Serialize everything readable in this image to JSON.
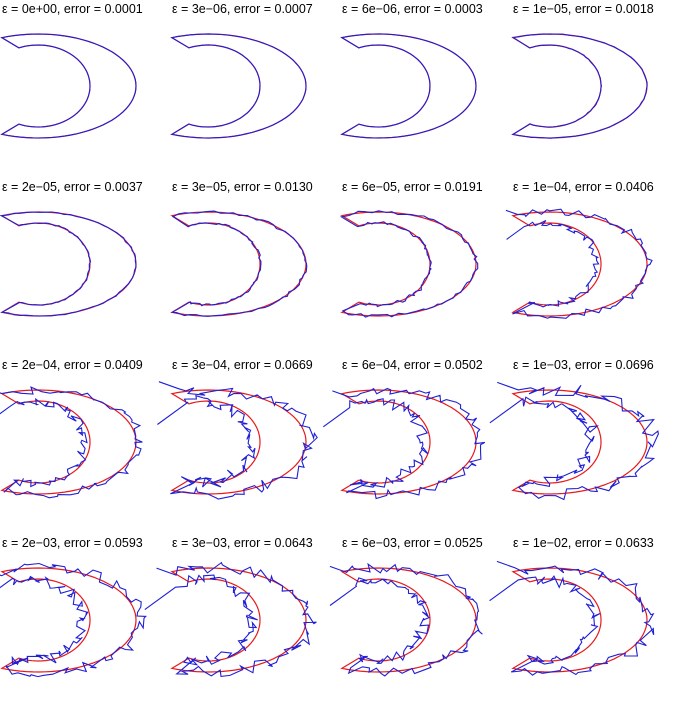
{
  "colors": {
    "reference_curve": "#e8191a",
    "reconstructed_curve": "#1f1fd6"
  },
  "panels": [
    {
      "title": "ε = 0e+00, error = 0.0001",
      "epsilon": 0,
      "error": 0.0001
    },
    {
      "title": "ε = 3e−06, error = 0.0007",
      "epsilon": 3e-06,
      "error": 0.0007
    },
    {
      "title": "ε = 6e−06, error = 0.0003",
      "epsilon": 6e-06,
      "error": 0.0003
    },
    {
      "title": "ε = 1e−05, error = 0.0018",
      "epsilon": 1e-05,
      "error": 0.0018
    },
    {
      "title": "ε = 2e−05, error = 0.0037",
      "epsilon": 2e-05,
      "error": 0.0037
    },
    {
      "title": "ε = 3e−05, error = 0.0130",
      "epsilon": 3e-05,
      "error": 0.013
    },
    {
      "title": "ε = 6e−05, error = 0.0191",
      "epsilon": 6e-05,
      "error": 0.0191
    },
    {
      "title": "ε = 1e−04, error = 0.0406",
      "epsilon": 0.0001,
      "error": 0.0406
    },
    {
      "title": "ε = 2e−04, error = 0.0409",
      "epsilon": 0.0002,
      "error": 0.0409
    },
    {
      "title": "ε = 3e−04, error = 0.0669",
      "epsilon": 0.0003,
      "error": 0.0669
    },
    {
      "title": "ε = 6e−04, error = 0.0502",
      "epsilon": 0.0006,
      "error": 0.0502
    },
    {
      "title": "ε = 1e−03, error = 0.0696",
      "epsilon": 0.001,
      "error": 0.0696
    },
    {
      "title": "ε = 2e−03, error = 0.0593",
      "epsilon": 0.002,
      "error": 0.0593
    },
    {
      "title": "ε = 3e−03, error = 0.0643",
      "epsilon": 0.003,
      "error": 0.0643
    },
    {
      "title": "ε = 6e−03, error = 0.0525",
      "epsilon": 0.006,
      "error": 0.0525
    },
    {
      "title": "ε = 1e−02, error = 0.0633",
      "epsilon": 0.01,
      "error": 0.0633
    }
  ]
}
